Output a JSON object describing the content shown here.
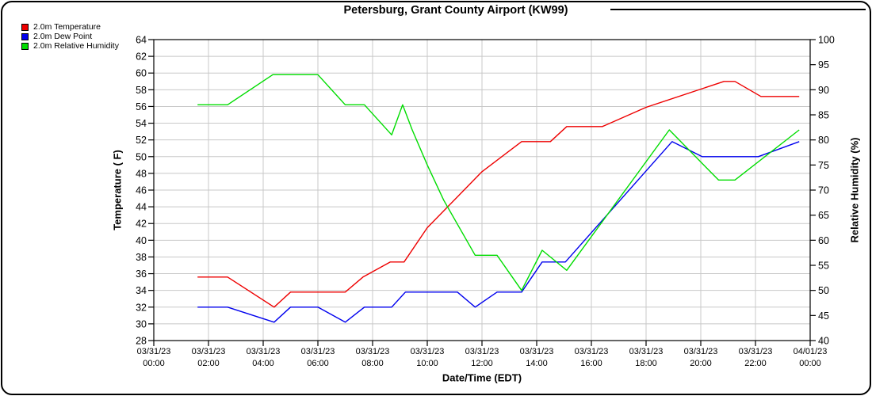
{
  "title": "Petersburg, Grant County Airport (KW99)",
  "legend": {
    "position": "top-left",
    "items": [
      {
        "label": "2.0m Temperature",
        "color": "#ee0000"
      },
      {
        "label": "2.0m Dew Point",
        "color": "#0000ee"
      },
      {
        "label": "2.0m Relative Humidity",
        "color": "#00dd00"
      }
    ]
  },
  "chart_data": {
    "type": "line",
    "title": "Petersburg, Grant County Airport (KW99)",
    "xlabel": "Date/Time (EDT)",
    "ylabel_left": "Temperature ( F)",
    "ylabel_right": "Relative Humidity (%)",
    "grid": true,
    "grid_color": "#c8c8c8",
    "x_axis": {
      "start_hour": 0,
      "end_hour": 24,
      "tick_interval_hours": 2,
      "tick_labels": [
        {
          "date": "03/31/23",
          "time": "00:00"
        },
        {
          "date": "03/31/23",
          "time": "02:00"
        },
        {
          "date": "03/31/23",
          "time": "04:00"
        },
        {
          "date": "03/31/23",
          "time": "06:00"
        },
        {
          "date": "03/31/23",
          "time": "08:00"
        },
        {
          "date": "03/31/23",
          "time": "10:00"
        },
        {
          "date": "03/31/23",
          "time": "12:00"
        },
        {
          "date": "03/31/23",
          "time": "14:00"
        },
        {
          "date": "03/31/23",
          "time": "16:00"
        },
        {
          "date": "03/31/23",
          "time": "18:00"
        },
        {
          "date": "03/31/23",
          "time": "20:00"
        },
        {
          "date": "03/31/23",
          "time": "22:00"
        },
        {
          "date": "04/01/23",
          "time": "00:00"
        }
      ]
    },
    "y_left": {
      "min": 28,
      "max": 64,
      "tick_step": 2
    },
    "y_right": {
      "min": 40,
      "max": 100,
      "tick_step": 5
    },
    "series": [
      {
        "name": "2.0m Temperature",
        "axis": "left",
        "color": "#ee0000",
        "points": [
          [
            1.6,
            35.6
          ],
          [
            2.7,
            35.6
          ],
          [
            4.4,
            32.0
          ],
          [
            5.0,
            33.8
          ],
          [
            7.0,
            33.8
          ],
          [
            7.65,
            35.6
          ],
          [
            8.65,
            37.4
          ],
          [
            9.15,
            37.4
          ],
          [
            10.0,
            41.5
          ],
          [
            12.0,
            48.2
          ],
          [
            13.45,
            51.8
          ],
          [
            14.5,
            51.8
          ],
          [
            15.1,
            53.6
          ],
          [
            16.4,
            53.6
          ],
          [
            18.0,
            55.9
          ],
          [
            20.85,
            59.0
          ],
          [
            21.25,
            59.0
          ],
          [
            22.2,
            57.2
          ],
          [
            23.6,
            57.2
          ]
        ]
      },
      {
        "name": "2.0m Dew Point",
        "axis": "left",
        "color": "#0000ee",
        "points": [
          [
            1.6,
            32.0
          ],
          [
            2.7,
            32.0
          ],
          [
            4.4,
            30.2
          ],
          [
            5.0,
            32.0
          ],
          [
            6.0,
            32.0
          ],
          [
            7.0,
            30.2
          ],
          [
            7.7,
            32.0
          ],
          [
            8.7,
            32.0
          ],
          [
            9.2,
            33.8
          ],
          [
            11.1,
            33.8
          ],
          [
            11.75,
            32.0
          ],
          [
            12.55,
            33.8
          ],
          [
            13.45,
            33.8
          ],
          [
            14.2,
            37.4
          ],
          [
            15.05,
            37.4
          ],
          [
            18.95,
            51.8
          ],
          [
            20.05,
            50.0
          ],
          [
            22.1,
            50.0
          ],
          [
            23.6,
            51.8
          ]
        ]
      },
      {
        "name": "2.0m Relative Humidity",
        "axis": "right",
        "color": "#00dd00",
        "points": [
          [
            1.6,
            87
          ],
          [
            2.7,
            87
          ],
          [
            4.35,
            93
          ],
          [
            6.0,
            93
          ],
          [
            7.0,
            87
          ],
          [
            7.7,
            87
          ],
          [
            8.7,
            81
          ],
          [
            9.1,
            87
          ],
          [
            9.45,
            82
          ],
          [
            10.0,
            75
          ],
          [
            10.6,
            68
          ],
          [
            11.75,
            57
          ],
          [
            12.55,
            57
          ],
          [
            13.45,
            50
          ],
          [
            14.2,
            58
          ],
          [
            15.1,
            54
          ],
          [
            18.85,
            82
          ],
          [
            20.65,
            72
          ],
          [
            21.25,
            72
          ],
          [
            23.6,
            82
          ]
        ]
      }
    ]
  }
}
